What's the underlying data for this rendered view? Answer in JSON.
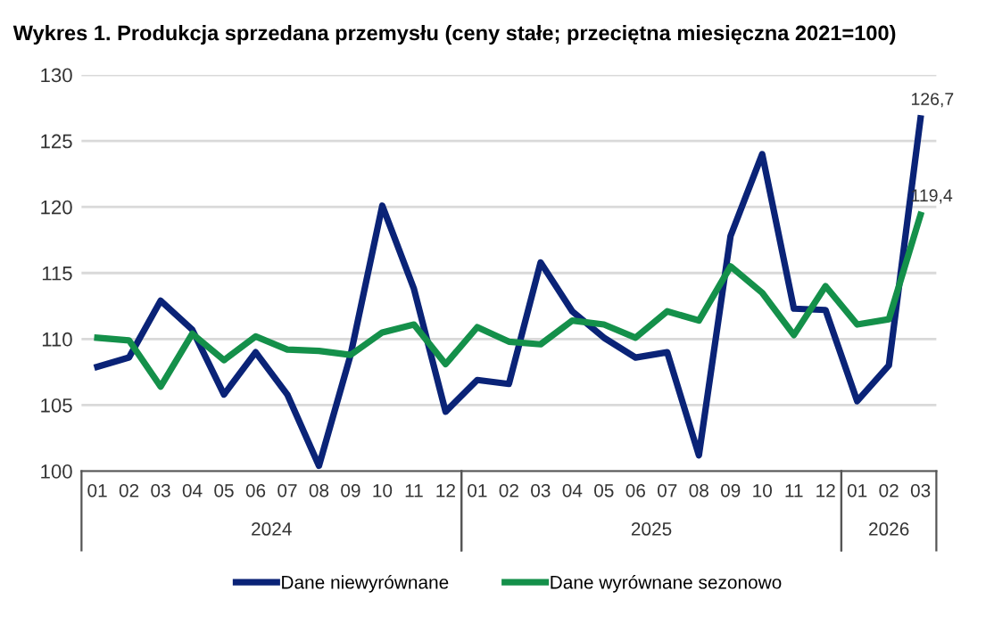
{
  "chart_data": {
    "type": "line",
    "title": "Wykres 1. Produkcja sprzedana przemysłu (ceny stałe; przeciętna miesięczna 2021=100)",
    "categories": [
      "01",
      "02",
      "03",
      "04",
      "05",
      "06",
      "07",
      "08",
      "09",
      "10",
      "11",
      "12",
      "01",
      "02",
      "03",
      "04",
      "05",
      "06",
      "07",
      "08",
      "09",
      "10",
      "11",
      "12",
      "01",
      "02",
      "03"
    ],
    "annotations": [
      "2024",
      "2025",
      "2026"
    ],
    "series": [
      {
        "name": "Dane niewyrównane",
        "color": "#0a2377",
        "values": [
          107.9,
          108.6,
          112.9,
          110.7,
          105.8,
          109.0,
          105.8,
          100.4,
          108.8,
          120.1,
          113.8,
          104.5,
          106.9,
          106.6,
          115.8,
          112.1,
          110.1,
          108.6,
          109.0,
          101.2,
          117.8,
          124.0,
          112.3,
          112.2,
          105.3,
          108.0,
          126.7
        ],
        "value_labels": [
          null,
          null,
          null,
          null,
          null,
          null,
          null,
          null,
          null,
          null,
          null,
          null,
          null,
          null,
          null,
          null,
          null,
          null,
          null,
          null,
          null,
          null,
          null,
          null,
          null,
          null,
          "126,7"
        ]
      },
      {
        "name": "Dane wyrównane sezonowo",
        "color": "#14904a",
        "values": [
          110.1,
          109.9,
          106.4,
          110.4,
          108.4,
          110.2,
          109.2,
          109.1,
          108.8,
          110.5,
          111.1,
          108.1,
          110.9,
          109.8,
          109.6,
          111.4,
          111.1,
          110.1,
          112.1,
          111.4,
          115.5,
          113.5,
          110.3,
          114.0,
          111.1,
          111.5,
          119.4
        ],
        "value_labels": [
          null,
          null,
          null,
          null,
          null,
          null,
          null,
          null,
          null,
          null,
          null,
          null,
          null,
          null,
          null,
          null,
          null,
          null,
          null,
          null,
          null,
          null,
          null,
          null,
          null,
          null,
          "119,4"
        ]
      }
    ],
    "ylim": [
      100,
      130
    ],
    "yticks": [
      100,
      105,
      110,
      115,
      120,
      125,
      130
    ],
    "grid": "y",
    "legend": "bottom",
    "marker": "none",
    "line_style": "solid"
  }
}
